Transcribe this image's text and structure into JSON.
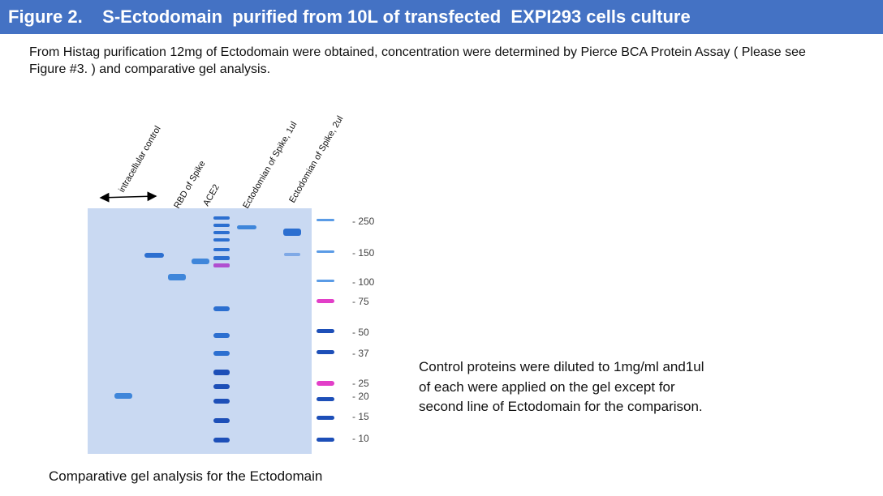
{
  "header": {
    "figure_label": "Figure 2.",
    "title": "S-Ectodomain  purified from 10L of transfected  EXPI293 cells culture"
  },
  "intro": {
    "text": "From Histag  purification 12mg of Ectodomain were obtained, concentration were determined by Pierce BCA Protein Assay ( Please see Figure #3. ) and comparative gel analysis."
  },
  "gel": {
    "lane_labels": [
      "intracellular control",
      "RBD of Spike",
      "ACE2",
      "Ectodomian of Spike, 1ul",
      "Ectodomian of Spike, 2ul"
    ],
    "markers_kda": [
      "250",
      "150",
      "100",
      "75",
      "50",
      "37",
      "25",
      "20",
      "15",
      "10"
    ],
    "colors": {
      "gel_bg": "#c9d9f2",
      "band": "#3f86da",
      "pink_band": "#e23fc8",
      "dark_band": "#1d4fb8"
    }
  },
  "caption": "Comparative gel analysis for the Ectodomain",
  "note": {
    "text": "Control proteins were diluted to 1mg/ml and1ul of each were applied on the gel except for second line of Ectodomain for the   comparison."
  }
}
